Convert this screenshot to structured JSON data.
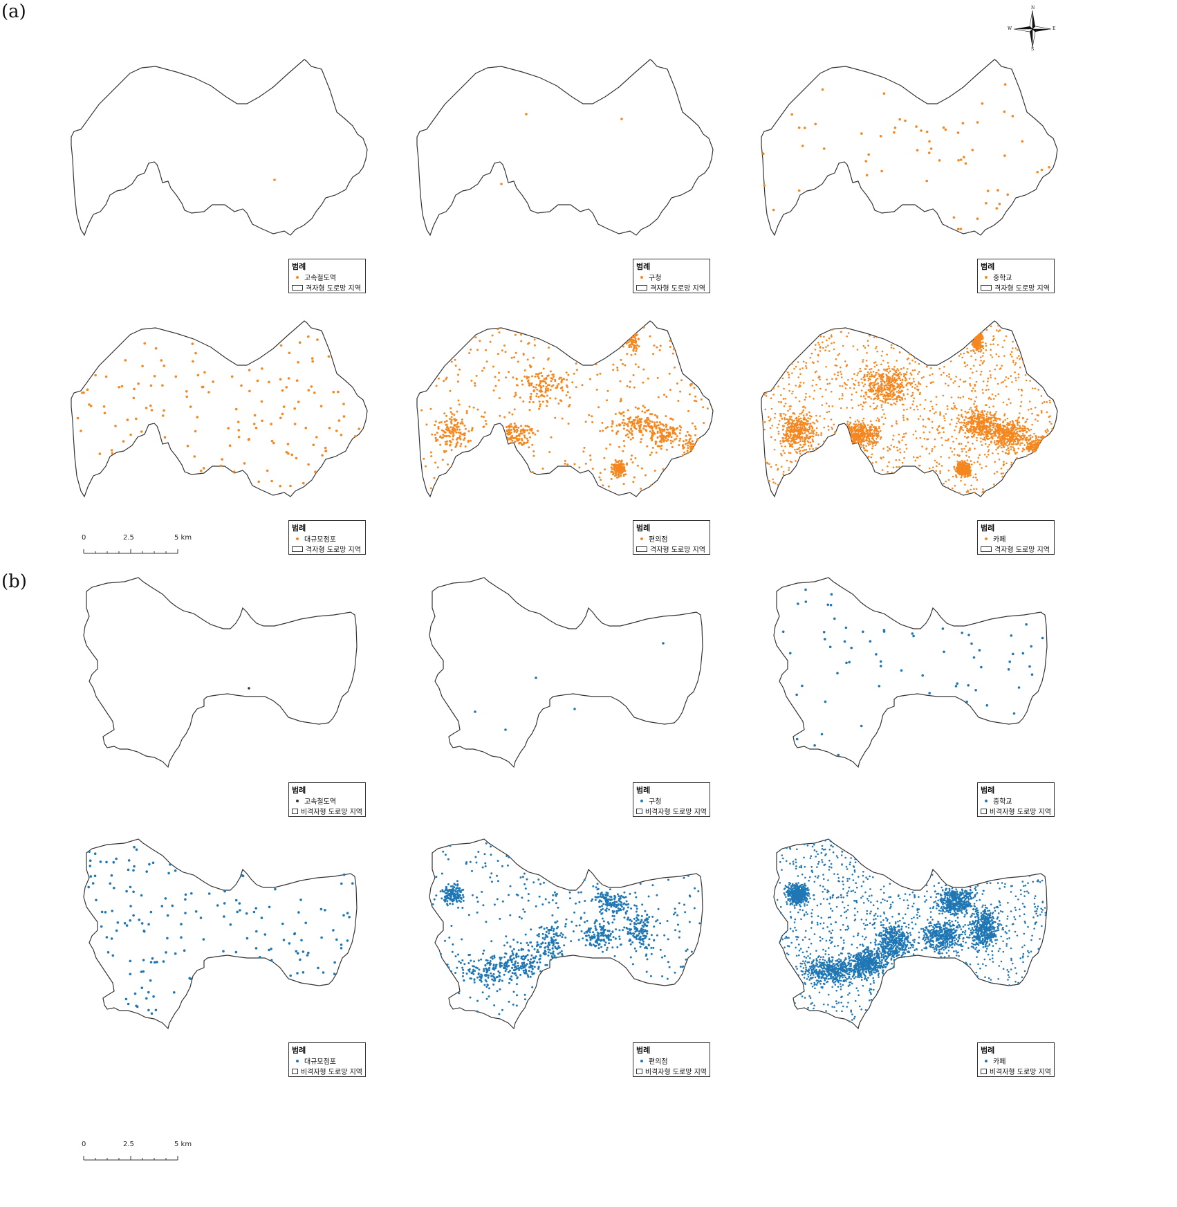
{
  "labels": {
    "a": "(a)",
    "b": "(b)"
  },
  "legend_title": "범례",
  "colors": {
    "orange": "#f5871f",
    "blue": "#1f77b4",
    "dark": "#333333",
    "outline": "#333333"
  },
  "compass": {
    "n": "N",
    "s": "S",
    "e": "E",
    "w": "W"
  },
  "scale": {
    "t0": "0",
    "t1": "2.5",
    "t2": "5 km"
  },
  "panels": [
    {
      "id": "a1",
      "legend_label": "고속철도역",
      "area_label": "격자형 도로망 지역",
      "color": "orange",
      "density": 1
    },
    {
      "id": "a2",
      "legend_label": "구청",
      "area_label": "격자형 도로망 지역",
      "color": "orange",
      "density": 3
    },
    {
      "id": "a3",
      "legend_label": "중학교",
      "area_label": "격자형 도로망 지역",
      "color": "orange",
      "density": 60
    },
    {
      "id": "a4",
      "legend_label": "대규모점포",
      "area_label": "격자형 도로망 지역",
      "color": "orange",
      "density": 140
    },
    {
      "id": "a5",
      "legend_label": "편의점",
      "area_label": "격자형 도로망 지역",
      "color": "orange",
      "density": 1100
    },
    {
      "id": "a6",
      "legend_label": "카페",
      "area_label": "격자형 도로망 지역",
      "color": "orange",
      "density": 3500
    },
    {
      "id": "b1",
      "legend_label": "고속철도역",
      "area_label": "비격자형 도로망 지역",
      "color": "dark",
      "density": 1
    },
    {
      "id": "b2",
      "legend_label": "구청",
      "area_label": "비격자형 도로망 지역",
      "color": "blue",
      "density": 5
    },
    {
      "id": "b3",
      "legend_label": "중학교",
      "area_label": "비격자형 도로망 지역",
      "color": "blue",
      "density": 65
    },
    {
      "id": "b4",
      "legend_label": "대규모점포",
      "area_label": "비격자형 도로망 지역",
      "color": "blue",
      "density": 160
    },
    {
      "id": "b5",
      "legend_label": "편의점",
      "area_label": "비격자형 도로망 지역",
      "color": "blue",
      "density": 1200
    },
    {
      "id": "b6",
      "legend_label": "카페",
      "area_label": "비격자형 도로망 지역",
      "color": "blue",
      "density": 4000
    }
  ]
}
